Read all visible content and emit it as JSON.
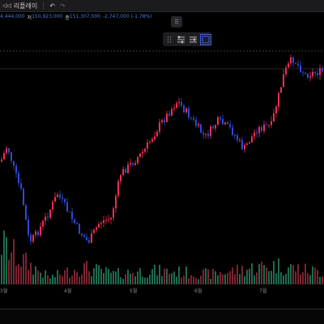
{
  "toolbar": {
    "replay_label": "리플레이",
    "undo_icon": "undo-icon",
    "redo_icon": "redo-icon"
  },
  "ohlc": {
    "open": "4,444,000",
    "high_label": "저",
    "high": "150,923,000",
    "close_label": "종",
    "close": "151,307,000",
    "change": "-2,747,000 (-1.78%)"
  },
  "x_axis": {
    "labels": [
      "3월",
      "4월",
      "5월",
      "6월",
      "7월"
    ]
  },
  "colors": {
    "up": "#ef2f4e",
    "down": "#2d4ad6",
    "vol_up": "#1f6b4f",
    "vol_down": "#7a2431",
    "accent": "#3f62e0"
  },
  "chart_data": {
    "type": "candlestick",
    "x_labels": [
      "3월",
      "4월",
      "5월",
      "6월",
      "7월"
    ],
    "close_trend": [
      [
        0,
        200
      ],
      [
        8,
        180
      ],
      [
        18,
        215
      ],
      [
        26,
        240
      ],
      [
        35,
        300
      ],
      [
        44,
        290
      ],
      [
        58,
        265
      ],
      [
        70,
        240
      ],
      [
        82,
        260
      ],
      [
        96,
        285
      ],
      [
        108,
        300
      ],
      [
        122,
        275
      ],
      [
        136,
        270
      ],
      [
        148,
        215
      ],
      [
        164,
        200
      ],
      [
        178,
        185
      ],
      [
        196,
        155
      ],
      [
        218,
        125
      ],
      [
        234,
        145
      ],
      [
        252,
        170
      ],
      [
        268,
        150
      ],
      [
        284,
        160
      ],
      [
        300,
        185
      ],
      [
        316,
        160
      ],
      [
        334,
        155
      ],
      [
        350,
        90
      ],
      [
        360,
        72
      ],
      [
        376,
        92
      ],
      [
        400,
        88
      ]
    ],
    "volume_trend": [
      [
        0,
        60
      ],
      [
        20,
        40
      ],
      [
        60,
        10
      ],
      [
        100,
        25
      ],
      [
        140,
        15
      ],
      [
        180,
        20
      ],
      [
        220,
        18
      ],
      [
        260,
        15
      ],
      [
        300,
        22
      ],
      [
        340,
        28
      ],
      [
        380,
        20
      ],
      [
        400,
        18
      ]
    ]
  }
}
